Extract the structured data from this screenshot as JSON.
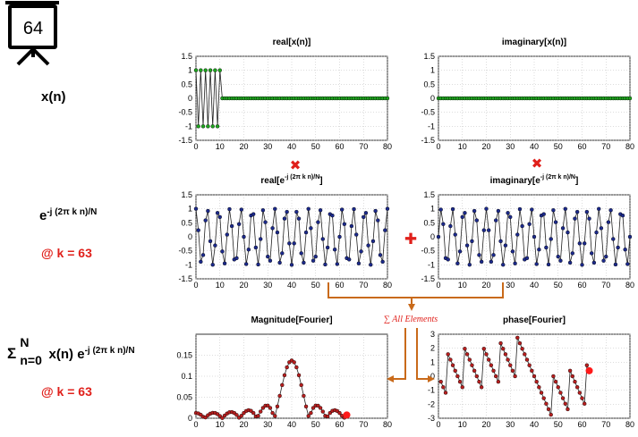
{
  "slide_number": "64",
  "left_labels": {
    "xn": "x(n)",
    "exp_base": "e",
    "exp_power": "-j (2π k n)/N",
    "k_note_1": "@ k = 63",
    "sum_sigma": "Σ",
    "sum_upper": "N",
    "sum_lower": "n=0",
    "sum_body": "x(n) e",
    "sum_power": "-j (2π k n)/N",
    "k_note_2": "@ k = 63"
  },
  "operators": {
    "multiply_glyph": "✖",
    "add_glyph": "✚",
    "sum_label": "∑ All Elements"
  },
  "colors": {
    "green_marker": "#1ea51e",
    "navy_marker": "#1c2a8c",
    "red_marker": "#b81f1f",
    "highlight": "#ff1a1a",
    "operator_red": "#e0201b",
    "arrow_orange": "#c96a1a"
  },
  "chart_data": [
    {
      "type": "line",
      "title": "real[x(n)]",
      "xlim": [
        0,
        80
      ],
      "ylim": [
        -1.5,
        1.5
      ],
      "xticks": [
        0,
        10,
        20,
        30,
        40,
        50,
        60,
        70,
        80
      ],
      "yticks": [
        1.5,
        1,
        0.5,
        0,
        -0.5,
        -1,
        -1.5
      ],
      "grid": true,
      "marker_color": "green",
      "series": [
        {
          "rule": "x(n) = (-1)^n for n = 0..10, 0 for n = 11..80"
        }
      ]
    },
    {
      "type": "line",
      "title": "imaginary[x(n)]",
      "xlim": [
        0,
        80
      ],
      "ylim": [
        -1.5,
        1.5
      ],
      "xticks": [
        0,
        10,
        20,
        30,
        40,
        50,
        60,
        70,
        80
      ],
      "yticks": [
        1.5,
        1,
        0.5,
        0,
        -0.5,
        -1,
        -1.5
      ],
      "grid": true,
      "marker_color": "green",
      "series": [
        {
          "rule": "0 for n = 0..80"
        }
      ]
    },
    {
      "type": "line",
      "title": "real[e",
      "title_sup": "-j (2π k n)/N",
      "title_end": "]",
      "xlim": [
        0,
        80
      ],
      "ylim": [
        -1.5,
        1.5
      ],
      "xticks": [
        0,
        10,
        20,
        30,
        40,
        50,
        60,
        70,
        80
      ],
      "yticks": [
        1.5,
        1,
        0.5,
        0,
        -0.5,
        -1,
        -1.5
      ],
      "grid": true,
      "marker_color": "navy",
      "series": [
        {
          "rule": "cos(2π·63·n/80) for n = 0..80"
        }
      ]
    },
    {
      "type": "line",
      "title": "imaginary[e",
      "title_sup": "-j (2π k n)/N",
      "title_end": "]",
      "xlim": [
        0,
        80
      ],
      "ylim": [
        -1.5,
        1.5
      ],
      "xticks": [
        0,
        10,
        20,
        30,
        40,
        50,
        60,
        70,
        80
      ],
      "yticks": [
        1.5,
        1,
        0.5,
        0,
        -0.5,
        -1,
        -1.5
      ],
      "grid": true,
      "marker_color": "navy",
      "series": [
        {
          "rule": "-sin(2π·63·n/80) for n = 0..80"
        }
      ]
    },
    {
      "type": "line",
      "title": "Magnitude[Fourier]",
      "xlim": [
        0,
        80
      ],
      "ylim": [
        0,
        0.2
      ],
      "xticks": [
        0,
        10,
        20,
        30,
        40,
        50,
        60,
        70,
        80
      ],
      "yticks": [
        0.15,
        0.1,
        0.05,
        0
      ],
      "grid": true,
      "marker_color": "red",
      "series": [
        {
          "rule": "|X(k)|/N for k = 0..63 of the signal above",
          "highlight_k": 63,
          "highlight_value": 0.005
        }
      ]
    },
    {
      "type": "line",
      "title": "phase[Fourier]",
      "xlim": [
        0,
        80
      ],
      "ylim": [
        -3,
        3
      ],
      "xticks": [
        0,
        10,
        20,
        30,
        40,
        50,
        60,
        70,
        80
      ],
      "yticks": [
        3,
        2,
        1,
        0,
        -1,
        -2,
        -3
      ],
      "grid": true,
      "marker_color": "red",
      "series": [
        {
          "rule": "arg X(k) for k = 1..63 of the signal above",
          "highlight_k": 63,
          "highlight_value": 1.3
        }
      ]
    }
  ]
}
